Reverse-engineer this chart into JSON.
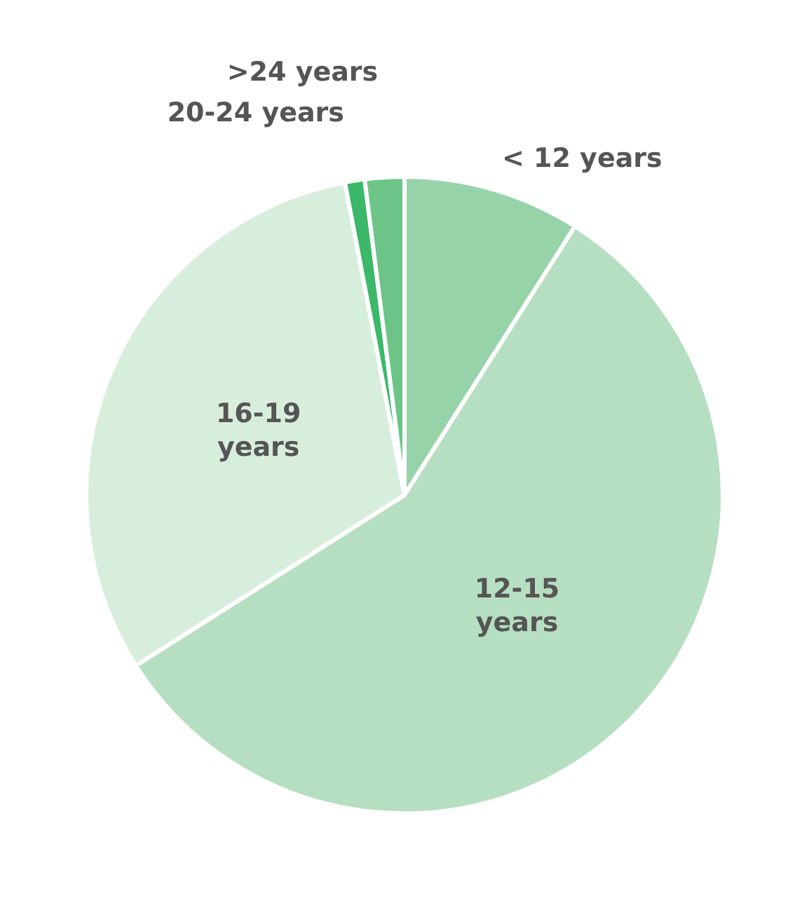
{
  "chart_data": {
    "type": "pie",
    "categories": [
      "< 12 years",
      "12-15 years",
      "16-19 years",
      "20-24 years",
      ">24 years"
    ],
    "values": [
      9,
      57,
      31,
      1,
      2
    ],
    "colors": [
      "#97d3a9",
      "#b6dfc1",
      "#d8eedd",
      "#3cb86a",
      "#6cc489"
    ],
    "legend": false
  }
}
